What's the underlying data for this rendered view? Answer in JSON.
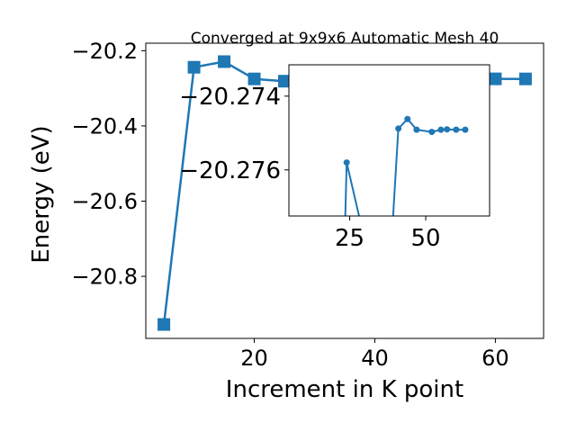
{
  "chart_data": [
    {
      "type": "line",
      "title": "Converged at 9x9x6 Automatic Mesh 40",
      "xlabel": "Increment in K point",
      "ylabel": "Energy (eV)",
      "xlim": [
        2.0,
        68.0
      ],
      "ylim": [
        -20.965,
        -20.18
      ],
      "x_ticks": [
        20,
        40,
        60
      ],
      "x_tick_labels": [
        "20",
        "40",
        "60"
      ],
      "y_ticks": [
        -20.8,
        -20.6,
        -20.4,
        -20.2
      ],
      "y_tick_labels": [
        "−20.8",
        "−20.6",
        "−20.4",
        "−20.2"
      ],
      "grid": false,
      "legend": "none",
      "marker": "square",
      "color": "#1f77b4",
      "series": [
        {
          "x": [
            5,
            10,
            15,
            20,
            25,
            30,
            35,
            40,
            45,
            50,
            55,
            60,
            65
          ],
          "y": [
            -20.928,
            -20.244,
            -20.229,
            -20.275,
            -20.281,
            -20.2745,
            -20.2747,
            -20.274,
            -20.2742,
            -20.2743,
            -20.2745,
            -20.2748,
            -20.275
          ]
        }
      ]
    },
    {
      "type": "line",
      "role": "inset",
      "xlim": [
        5.0,
        71.0
      ],
      "ylim": [
        -20.27725,
        -20.27315
      ],
      "x_ticks": [
        25,
        50
      ],
      "x_tick_labels": [
        "25",
        "50"
      ],
      "y_ticks": [
        -20.276,
        -20.274
      ],
      "y_tick_labels": [
        "−20.276",
        "−20.274"
      ],
      "grid": false,
      "legend": "none",
      "marker": "circle",
      "color": "#1f77b4",
      "series": [
        {
          "x": [
            23,
            24,
            33,
            38,
            41,
            44,
            47,
            52,
            55,
            57,
            60,
            63
          ],
          "y": [
            -20.279,
            -20.2758,
            -20.279,
            -20.279,
            -20.27488,
            -20.27462,
            -20.27491,
            -20.27497,
            -20.27491,
            -20.2749,
            -20.27491,
            -20.27491
          ]
        }
      ]
    }
  ]
}
